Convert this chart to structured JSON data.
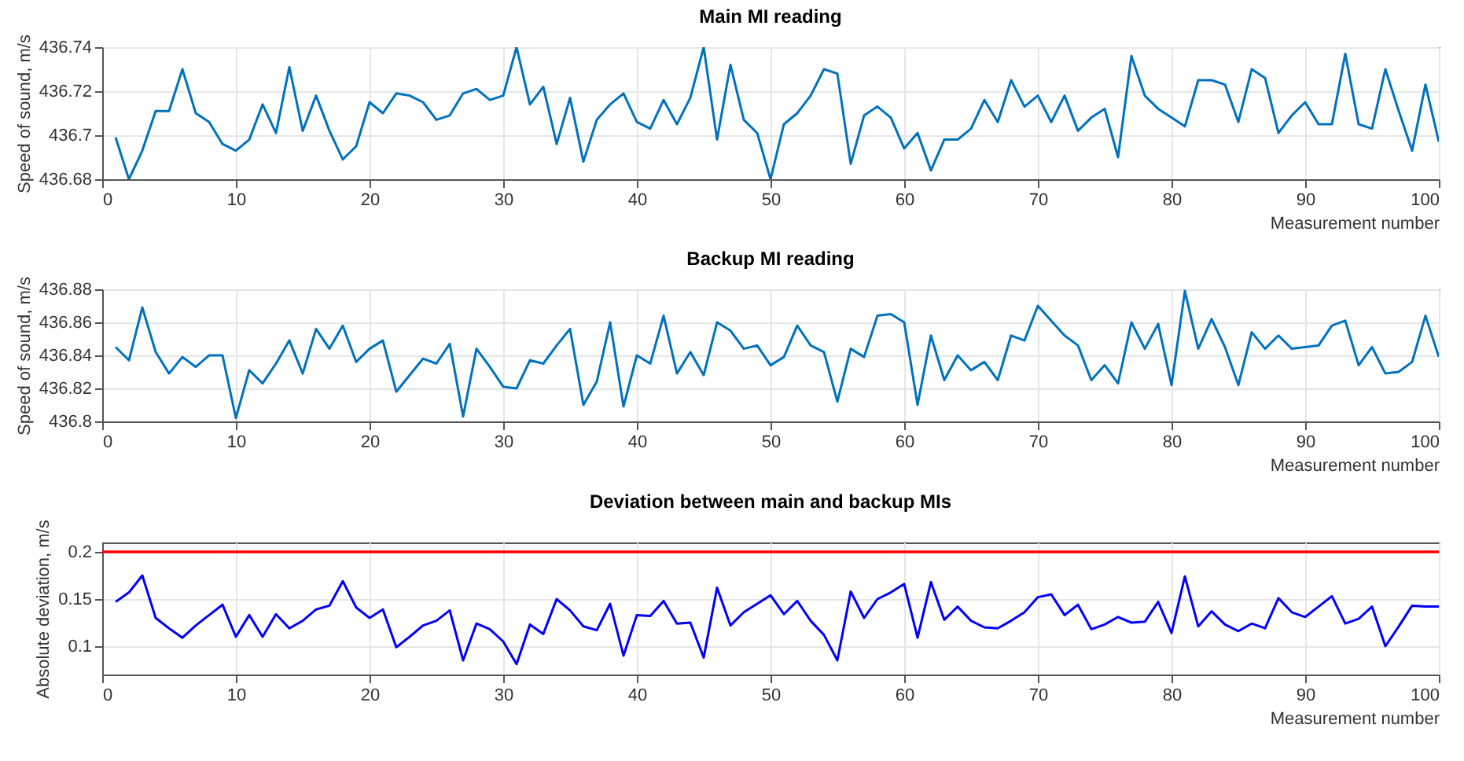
{
  "chart_data": [
    {
      "type": "line",
      "title": "Main MI reading",
      "xlabel": "Measurement number",
      "ylabel": "Speed of sound, m/s",
      "grid": true,
      "marker": "none",
      "line_style": "solid",
      "xlim": [
        0,
        100
      ],
      "xticks": [
        0,
        10,
        20,
        30,
        40,
        50,
        60,
        70,
        80,
        90,
        100
      ],
      "ylim": [
        436.68,
        436.74
      ],
      "yticks": [
        436.68,
        436.7,
        436.72,
        436.74
      ],
      "x": [
        1,
        2,
        3,
        4,
        5,
        6,
        7,
        8,
        9,
        10,
        11,
        12,
        13,
        14,
        15,
        16,
        17,
        18,
        19,
        20,
        21,
        22,
        23,
        24,
        25,
        26,
        27,
        28,
        29,
        30,
        31,
        32,
        33,
        34,
        35,
        36,
        37,
        38,
        39,
        40,
        41,
        42,
        43,
        44,
        45,
        46,
        47,
        48,
        49,
        50,
        51,
        52,
        53,
        54,
        55,
        56,
        57,
        58,
        59,
        60,
        61,
        62,
        63,
        64,
        65,
        66,
        67,
        68,
        69,
        70,
        71,
        72,
        73,
        74,
        75,
        76,
        77,
        78,
        79,
        80,
        81,
        82,
        83,
        84,
        85,
        86,
        87,
        88,
        89,
        90,
        91,
        92,
        93,
        94,
        95,
        96,
        97,
        98,
        99,
        100
      ],
      "series": [
        {
          "color": "#0072bd",
          "values": [
            436.699,
            436.68,
            436.693,
            436.711,
            436.711,
            436.73,
            436.71,
            436.706,
            436.696,
            436.693,
            436.698,
            436.714,
            436.701,
            436.731,
            436.702,
            436.718,
            436.702,
            436.689,
            436.695,
            436.715,
            436.71,
            436.719,
            436.718,
            436.715,
            436.707,
            436.709,
            436.719,
            436.721,
            436.716,
            436.718,
            436.74,
            436.714,
            436.722,
            436.696,
            436.717,
            436.688,
            436.707,
            436.714,
            436.719,
            436.706,
            436.703,
            436.716,
            436.705,
            436.717,
            436.74,
            436.698,
            436.732,
            436.707,
            436.701,
            436.68,
            436.705,
            436.71,
            436.718,
            436.73,
            436.728,
            436.687,
            436.709,
            436.713,
            436.708,
            436.694,
            436.701,
            436.684,
            436.698,
            436.698,
            436.703,
            436.716,
            436.706,
            436.725,
            436.713,
            436.718,
            436.706,
            436.718,
            436.702,
            436.708,
            436.712,
            436.69,
            436.736,
            436.718,
            436.712,
            436.708,
            436.704,
            436.725,
            436.725,
            436.723,
            436.706,
            436.73,
            436.726,
            436.701,
            436.709,
            436.715,
            436.705,
            436.705,
            436.737,
            436.705,
            436.703,
            436.73,
            436.711,
            436.693,
            436.723,
            436.697
          ]
        }
      ]
    },
    {
      "type": "line",
      "title": "Backup MI reading",
      "xlabel": "Measurement number",
      "ylabel": "Speed of sound, m/s",
      "grid": true,
      "marker": "none",
      "line_style": "solid",
      "xlim": [
        0,
        100
      ],
      "xticks": [
        0,
        10,
        20,
        30,
        40,
        50,
        60,
        70,
        80,
        90,
        100
      ],
      "ylim": [
        436.8,
        436.88
      ],
      "yticks": [
        436.8,
        436.82,
        436.84,
        436.86,
        436.88
      ],
      "x": [
        1,
        2,
        3,
        4,
        5,
        6,
        7,
        8,
        9,
        10,
        11,
        12,
        13,
        14,
        15,
        16,
        17,
        18,
        19,
        20,
        21,
        22,
        23,
        24,
        25,
        26,
        27,
        28,
        29,
        30,
        31,
        32,
        33,
        34,
        35,
        36,
        37,
        38,
        39,
        40,
        41,
        42,
        43,
        44,
        45,
        46,
        47,
        48,
        49,
        50,
        51,
        52,
        53,
        54,
        55,
        56,
        57,
        58,
        59,
        60,
        61,
        62,
        63,
        64,
        65,
        66,
        67,
        68,
        69,
        70,
        71,
        72,
        73,
        74,
        75,
        76,
        77,
        78,
        79,
        80,
        81,
        82,
        83,
        84,
        85,
        86,
        87,
        88,
        89,
        90,
        91,
        92,
        93,
        94,
        95,
        96,
        97,
        98,
        99,
        100
      ],
      "series": [
        {
          "color": "#0072bd",
          "values": [
            436.845,
            436.837,
            436.869,
            436.842,
            436.829,
            436.839,
            436.833,
            436.84,
            436.84,
            436.802,
            436.831,
            436.823,
            436.835,
            436.849,
            436.829,
            436.856,
            436.844,
            436.858,
            436.836,
            436.844,
            436.849,
            436.818,
            436.828,
            436.838,
            436.835,
            436.847,
            436.803,
            436.844,
            436.833,
            436.821,
            436.82,
            436.837,
            436.835,
            436.846,
            436.856,
            436.81,
            436.824,
            436.86,
            436.809,
            436.84,
            436.835,
            436.864,
            436.829,
            436.842,
            436.828,
            436.86,
            436.855,
            436.844,
            436.846,
            436.834,
            436.839,
            436.858,
            436.846,
            436.842,
            436.812,
            436.844,
            436.839,
            436.864,
            436.865,
            436.86,
            436.81,
            436.852,
            436.825,
            436.84,
            436.831,
            436.836,
            436.825,
            436.852,
            436.849,
            436.87,
            436.861,
            436.852,
            436.846,
            436.825,
            436.834,
            436.823,
            436.86,
            436.844,
            436.859,
            436.822,
            436.879,
            436.844,
            436.862,
            436.845,
            436.822,
            436.854,
            436.844,
            436.852,
            436.844,
            436.845,
            436.846,
            436.858,
            436.861,
            436.834,
            436.845,
            436.829,
            436.83,
            436.836,
            436.864,
            436.839
          ]
        }
      ]
    },
    {
      "type": "line",
      "title": "Deviation between main and backup MIs",
      "xlabel": "Measurement number",
      "ylabel": "Absolute deviation, m/s",
      "grid": true,
      "marker": "none",
      "line_style": "solid",
      "xlim": [
        0,
        100
      ],
      "xticks": [
        0,
        10,
        20,
        30,
        40,
        50,
        60,
        70,
        80,
        90,
        100
      ],
      "ylim": [
        0.07,
        0.21
      ],
      "yticks": [
        0.1,
        0.15,
        0.2
      ],
      "x": [
        1,
        2,
        3,
        4,
        5,
        6,
        7,
        8,
        9,
        10,
        11,
        12,
        13,
        14,
        15,
        16,
        17,
        18,
        19,
        20,
        21,
        22,
        23,
        24,
        25,
        26,
        27,
        28,
        29,
        30,
        31,
        32,
        33,
        34,
        35,
        36,
        37,
        38,
        39,
        40,
        41,
        42,
        43,
        44,
        45,
        46,
        47,
        48,
        49,
        50,
        51,
        52,
        53,
        54,
        55,
        56,
        57,
        58,
        59,
        60,
        61,
        62,
        63,
        64,
        65,
        66,
        67,
        68,
        69,
        70,
        71,
        72,
        73,
        74,
        75,
        76,
        77,
        78,
        79,
        80,
        81,
        82,
        83,
        84,
        85,
        86,
        87,
        88,
        89,
        90,
        91,
        92,
        93,
        94,
        95,
        96,
        97,
        98,
        99,
        100
      ],
      "series": [
        {
          "color": "#0000ff",
          "values": [
            0.147,
            0.157,
            0.175,
            0.13,
            0.119,
            0.109,
            0.122,
            0.133,
            0.144,
            0.11,
            0.133,
            0.11,
            0.134,
            0.119,
            0.127,
            0.139,
            0.143,
            0.169,
            0.141,
            0.13,
            0.139,
            0.099,
            0.11,
            0.122,
            0.127,
            0.138,
            0.085,
            0.124,
            0.118,
            0.105,
            0.081,
            0.123,
            0.113,
            0.15,
            0.138,
            0.121,
            0.117,
            0.145,
            0.09,
            0.133,
            0.132,
            0.148,
            0.124,
            0.125,
            0.088,
            0.162,
            0.122,
            0.136,
            0.145,
            0.154,
            0.134,
            0.148,
            0.127,
            0.112,
            0.085,
            0.158,
            0.13,
            0.15,
            0.157,
            0.166,
            0.109,
            0.168,
            0.128,
            0.142,
            0.127,
            0.12,
            0.119,
            0.127,
            0.136,
            0.152,
            0.155,
            0.133,
            0.144,
            0.118,
            0.123,
            0.131,
            0.125,
            0.126,
            0.147,
            0.114,
            0.174,
            0.121,
            0.137,
            0.123,
            0.116,
            0.124,
            0.119,
            0.151,
            0.136,
            0.131,
            0.142,
            0.153,
            0.124,
            0.129,
            0.142,
            0.1,
            0.121,
            0.143,
            0.142,
            0.142
          ]
        }
      ],
      "ref_lines": [
        {
          "axis": "y",
          "value": 0.2,
          "color": "#ff0000",
          "line_style": "solid"
        }
      ]
    }
  ]
}
